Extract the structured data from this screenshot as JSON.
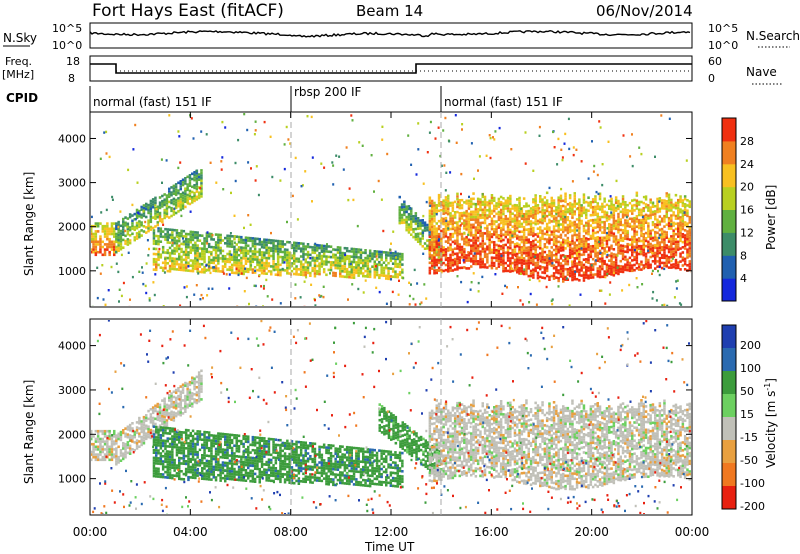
{
  "header": {
    "site": "Fort Hays East (fitACF)",
    "beam": "Beam 14",
    "date": "06/Nov/2014"
  },
  "panels": {
    "nsky": {
      "label": "N.Sky",
      "right_label": "N.Search",
      "tick_top": "10^5",
      "tick_bottom": "10^0",
      "right_tick_top": "10^5",
      "right_tick_bottom": "10^0"
    },
    "freq": {
      "label": "Freq.",
      "unit": "[MHz]",
      "tick_top": "18",
      "tick_bottom": "8",
      "right_label": "Nave",
      "right_tick_top": "60",
      "right_tick_bottom": "0"
    },
    "cpid": {
      "label": "CPID",
      "modes": [
        {
          "name": "normal (fast) 151 IF",
          "start_hour": 0,
          "end_hour": 8
        },
        {
          "name": "rbsp 200 IF",
          "start_hour": 8,
          "end_hour": 14
        },
        {
          "name": "normal (fast) 151 IF",
          "start_hour": 14,
          "end_hour": 24
        }
      ]
    }
  },
  "chart_data": [
    {
      "type": "heatmap",
      "title": "",
      "quantity": "Power",
      "xlabel": "Time UT",
      "ylabel": "Slant Range [km]",
      "xlim": [
        0,
        24
      ],
      "ylim": [
        180,
        4600
      ],
      "x_ticks": [
        "00:00",
        "04:00",
        "08:00",
        "12:00",
        "16:00",
        "20:00",
        "00:00"
      ],
      "y_ticks": [
        1000,
        2000,
        3000,
        4000
      ],
      "colorbar": {
        "label": "Power [dB]",
        "ticks": [
          4,
          8,
          12,
          16,
          20,
          24,
          28
        ]
      },
      "regions": [
        {
          "name": "early-band",
          "t": [
            0,
            1
          ],
          "range": [
            1350,
            2100
          ],
          "level_db": 22
        },
        {
          "name": "rising-band-1",
          "t": [
            1,
            4.5
          ],
          "range": [
            1400,
            3600
          ],
          "level_db": 14
        },
        {
          "name": "main-band-day",
          "t": [
            2.5,
            12.5
          ],
          "range": [
            800,
            2000
          ],
          "level_db": 16
        },
        {
          "name": "descending-band",
          "t": [
            12.3,
            14
          ],
          "range": [
            1100,
            2700
          ],
          "level_db": 14
        },
        {
          "name": "main-band-evening",
          "t": [
            13.5,
            24
          ],
          "range": [
            900,
            2500
          ],
          "level_db": 24
        }
      ]
    },
    {
      "type": "heatmap",
      "title": "",
      "quantity": "Velocity",
      "xlabel": "Time UT",
      "ylabel": "Slant Range [km]",
      "xlim": [
        0,
        24
      ],
      "ylim": [
        180,
        4600
      ],
      "x_ticks": [
        "00:00",
        "04:00",
        "08:00",
        "12:00",
        "16:00",
        "20:00",
        "00:00"
      ],
      "y_ticks": [
        1000,
        2000,
        3000,
        4000
      ],
      "colorbar": {
        "label": "Velocity [m s-1]",
        "label_main": "Velocity [m s",
        "label_sup": "-1",
        "label_end": "]",
        "ticks": [
          200,
          100,
          50,
          15,
          -15,
          -50,
          -100,
          -200
        ]
      },
      "regions": [
        {
          "name": "early-band",
          "t": [
            0,
            1
          ],
          "range": [
            1400,
            2100
          ],
          "velocity": 0
        },
        {
          "name": "rising-band",
          "t": [
            1,
            4.5
          ],
          "range": [
            1300,
            3700
          ],
          "velocity": 0
        },
        {
          "name": "main-band-day",
          "t": [
            2.5,
            12.5
          ],
          "range": [
            800,
            2200
          ],
          "velocity": 60
        },
        {
          "name": "descending-band",
          "t": [
            11.5,
            14
          ],
          "range": [
            1000,
            2700
          ],
          "velocity": 50
        },
        {
          "name": "main-band-evening",
          "t": [
            13.5,
            24
          ],
          "range": [
            900,
            2500
          ],
          "velocity": 0
        }
      ]
    }
  ],
  "colors": {
    "power": [
      "#1428dc",
      "#2060b0",
      "#3c8c68",
      "#60b040",
      "#b8d020",
      "#f8c020",
      "#f08020",
      "#f03010"
    ],
    "velocity": [
      "#1f3fb0",
      "#2a6ab0",
      "#3c9c3c",
      "#6cd060",
      "#c0c0b8",
      "#e8a040",
      "#f07820",
      "#e82010"
    ]
  }
}
